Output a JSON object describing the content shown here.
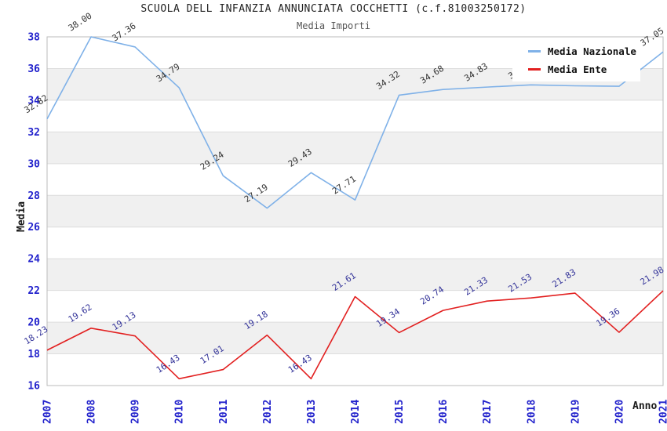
{
  "chart_data": {
    "type": "line",
    "title": "SCUOLA DELL INFANZIA ANNUNCIATA COCCHETTI (c.f.81003250172)",
    "subtitle": "Media Importi",
    "xlabel": "Anno",
    "ylabel": "Media",
    "categories": [
      "2007",
      "2008",
      "2009",
      "2010",
      "2011",
      "2012",
      "2013",
      "2014",
      "2015",
      "2016",
      "2017",
      "2018",
      "2019",
      "2020",
      "2021"
    ],
    "series": [
      {
        "id": "nazionale",
        "name": "Media Nazionale",
        "color": "#7FB1E8",
        "label_color": "#333333",
        "values": [
          32.82,
          38.0,
          37.36,
          34.79,
          29.24,
          27.19,
          29.43,
          27.71,
          34.32,
          34.68,
          34.83,
          34.97,
          34.91,
          34.88,
          37.05
        ],
        "labels": [
          "32.82",
          "38.00",
          "37.36",
          "34.79",
          "29.24",
          "27.19",
          "29.43",
          "27.71",
          "34.32",
          "34.68",
          "34.83",
          "34.97",
          "34.91",
          "34.88",
          "37.05"
        ]
      },
      {
        "id": "ente",
        "name": "Media Ente",
        "color": "#E22020",
        "label_color": "#333399",
        "values": [
          18.23,
          19.62,
          19.13,
          16.43,
          17.01,
          19.18,
          16.43,
          21.61,
          19.34,
          20.74,
          21.33,
          21.53,
          21.83,
          19.36,
          21.98
        ],
        "labels": [
          "18.23",
          "19.62",
          "19.13",
          "16.43",
          "17.01",
          "19.18",
          "16.43",
          "21.61",
          "19.34",
          "20.74",
          "21.33",
          "21.53",
          "21.83",
          "19.36",
          "21.98"
        ]
      }
    ],
    "ylim": [
      16,
      38
    ],
    "ytick_step": 2,
    "shaded_band_starts": [
      18,
      22,
      26,
      30,
      34
    ],
    "grid": "on",
    "legend_position": "top-right",
    "colors": {
      "tick_label": "#2222CC",
      "band": "#F0F0F0",
      "grid": "#DDDDDD",
      "border": "#BBBBBB"
    }
  }
}
